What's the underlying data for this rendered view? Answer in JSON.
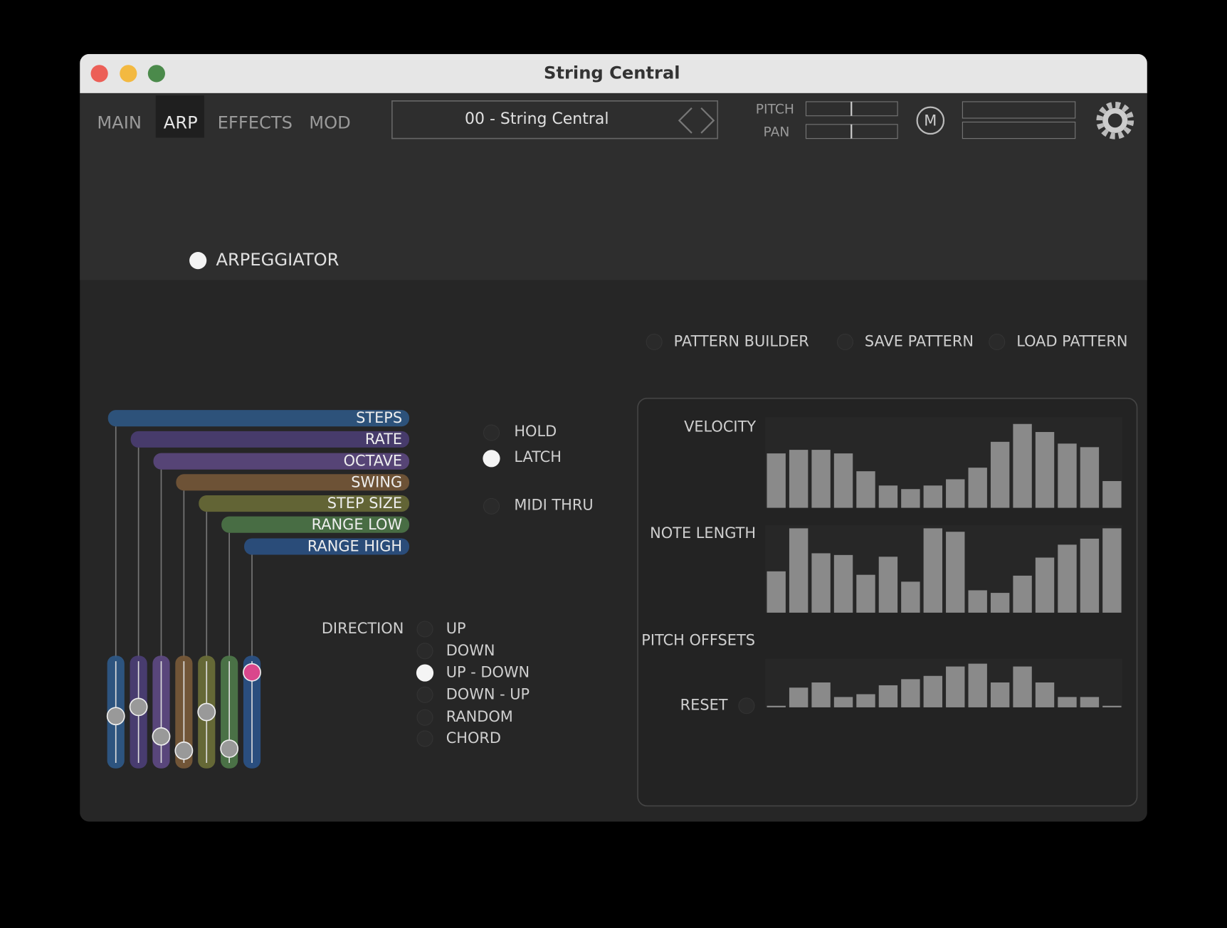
{
  "window": {
    "title": "String Central"
  },
  "tabs": {
    "items": [
      "MAIN",
      "ARP",
      "EFFECTS",
      "MOD"
    ],
    "selected": 1
  },
  "preset": {
    "name": "00 - String Central"
  },
  "header": {
    "pitch_label": "PITCH",
    "pan_label": "PAN",
    "midi_button": "M"
  },
  "arpeggiator": {
    "label": "ARPEGGIATOR",
    "enabled": true
  },
  "pattern_actions": [
    "PATTERN BUILDER",
    "SAVE PATTERN",
    "LOAD PATTERN"
  ],
  "slider_range": [
    0,
    100
  ],
  "parameters": [
    {
      "name": "STEPS",
      "color": "#2f5a8a",
      "value": 46
    },
    {
      "name": "RATE",
      "color": "#4d3f78",
      "value": 55
    },
    {
      "name": "OCTAVE",
      "color": "#5f4a85",
      "value": 26
    },
    {
      "name": "SWING",
      "color": "#7a5b3a",
      "value": 12
    },
    {
      "name": "STEP SIZE",
      "color": "#6d7038",
      "value": 50
    },
    {
      "name": "RANGE LOW",
      "color": "#4f7a4a",
      "value": 14
    },
    {
      "name": "RANGE HIGH",
      "color": "#2b5388",
      "value": 89
    }
  ],
  "modes": {
    "items": [
      "HOLD",
      "LATCH",
      "MIDI THRU"
    ],
    "on": [
      false,
      true,
      false
    ]
  },
  "direction": {
    "label": "DIRECTION",
    "options": [
      "UP",
      "DOWN",
      "UP - DOWN",
      "DOWN - UP",
      "RANDOM",
      "CHORD"
    ],
    "selected": 2
  },
  "pattern": {
    "velocity": {
      "label": "VELOCITY",
      "ylim": [
        0,
        100
      ],
      "values": [
        61,
        65,
        65,
        61,
        41,
        25,
        21,
        25,
        32,
        45,
        74,
        94,
        85,
        72,
        68,
        30
      ]
    },
    "note_length": {
      "label": "NOTE LENGTH",
      "ylim": [
        0,
        100
      ],
      "values": [
        48,
        98,
        69,
        67,
        44,
        65,
        36,
        98,
        94,
        26,
        23,
        43,
        64,
        79,
        86,
        98
      ]
    },
    "pitch_offsets": {
      "label": "PITCH OFFSETS",
      "ylim": [
        0,
        100
      ],
      "values": [
        0,
        42,
        53,
        22,
        28,
        47,
        60,
        67,
        87,
        93,
        53,
        87,
        53,
        22,
        22,
        0
      ]
    },
    "reset_label": "RESET"
  }
}
